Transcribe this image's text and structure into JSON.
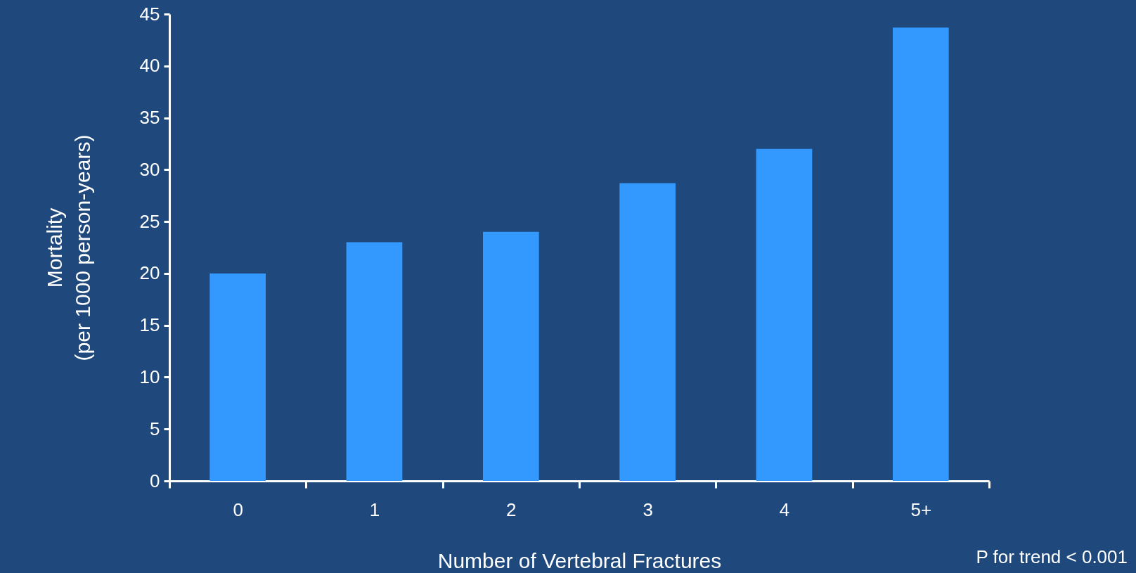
{
  "chart_data": {
    "type": "bar",
    "categories": [
      "0",
      "1",
      "2",
      "3",
      "4",
      "5+"
    ],
    "values": [
      20,
      23,
      24,
      28.7,
      32,
      43.7
    ],
    "color": "#3399ff",
    "xlabel": "Number of Vertebral Fractures",
    "ylabel": "Mortality\n(per 1000 person-years)",
    "ylim": [
      0,
      45
    ],
    "yticks": [
      0,
      5,
      10,
      15,
      20,
      25,
      30,
      35,
      40,
      45
    ],
    "grid": false,
    "annotations": [
      "P for trend < 0.001"
    ]
  }
}
